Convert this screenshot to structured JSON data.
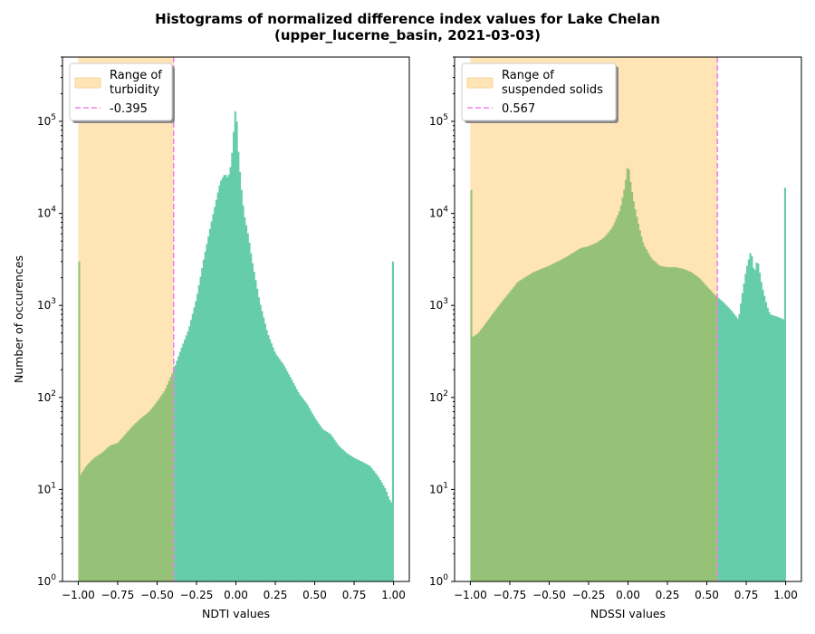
{
  "figure": {
    "title_line1": "Histograms of normalized difference index values for Lake Chelan",
    "title_line2": "(upper_lucerne_basin, 2021-03-03)"
  },
  "colors": {
    "histogram": "#66cdaa",
    "range_fill": "#ffe4b5",
    "threshold_line": "#ee82ee",
    "overlap": "#96c278"
  },
  "chart_data": [
    {
      "type": "bar",
      "name": "ndti-histogram",
      "xlabel": "NDTI values",
      "ylabel": "Number of occurences",
      "xlim": [
        -1.1,
        1.1
      ],
      "ylim": [
        1,
        500000
      ],
      "yscale": "log",
      "xticks": [
        "−1.00",
        "−0.75",
        "−0.50",
        "−0.25",
        "0.00",
        "0.25",
        "0.50",
        "0.75",
        "1.00"
      ],
      "xtick_values": [
        -1.0,
        -0.75,
        -0.5,
        -0.25,
        0.0,
        0.25,
        0.5,
        0.75,
        1.0
      ],
      "yticks": [
        1,
        10,
        100,
        1000,
        10000,
        100000
      ],
      "range": [
        -1.0,
        -0.395
      ],
      "threshold": -0.395,
      "legend": {
        "range_label": [
          "Range of",
          "turbidity"
        ],
        "threshold_label": "-0.395",
        "placement": "upper-left"
      },
      "x": [
        -1.0,
        -0.99,
        -0.95,
        -0.9,
        -0.85,
        -0.8,
        -0.75,
        -0.7,
        -0.65,
        -0.6,
        -0.55,
        -0.5,
        -0.45,
        -0.4,
        -0.35,
        -0.3,
        -0.25,
        -0.2,
        -0.15,
        -0.1,
        -0.07,
        -0.05,
        -0.03,
        -0.01,
        0.0,
        0.01,
        0.03,
        0.05,
        0.08,
        0.1,
        0.15,
        0.2,
        0.25,
        0.3,
        0.35,
        0.4,
        0.45,
        0.5,
        0.55,
        0.6,
        0.65,
        0.7,
        0.75,
        0.8,
        0.85,
        0.9,
        0.95,
        0.97,
        0.99,
        1.0
      ],
      "values": [
        3000,
        14,
        18,
        22,
        25,
        30,
        32,
        40,
        50,
        60,
        70,
        90,
        120,
        190,
        330,
        550,
        1200,
        3500,
        9000,
        22000,
        27000,
        24000,
        35000,
        100000,
        165000,
        60000,
        22000,
        10000,
        5500,
        3200,
        1100,
        500,
        300,
        230,
        160,
        110,
        85,
        60,
        45,
        40,
        30,
        25,
        22,
        20,
        18,
        14,
        10,
        8,
        7,
        3000
      ]
    },
    {
      "type": "bar",
      "name": "ndssi-histogram",
      "xlabel": "NDSSI values",
      "ylabel": "",
      "xlim": [
        -1.1,
        1.1
      ],
      "ylim": [
        1,
        500000
      ],
      "yscale": "log",
      "xticks": [
        "−1.00",
        "−0.75",
        "−0.50",
        "−0.25",
        "0.00",
        "0.25",
        "0.50",
        "0.75",
        "1.00"
      ],
      "xtick_values": [
        -1.0,
        -0.75,
        -0.5,
        -0.25,
        0.0,
        0.25,
        0.5,
        0.75,
        1.0
      ],
      "yticks": [
        1,
        10,
        100,
        1000,
        10000,
        100000
      ],
      "range": [
        -1.0,
        0.567
      ],
      "threshold": 0.567,
      "legend": {
        "range_label": [
          "Range of",
          "suspended solids"
        ],
        "threshold_label": "0.567",
        "placement": "upper-left"
      },
      "x": [
        -1.0,
        -0.99,
        -0.95,
        -0.9,
        -0.85,
        -0.8,
        -0.75,
        -0.7,
        -0.6,
        -0.5,
        -0.4,
        -0.3,
        -0.25,
        -0.2,
        -0.15,
        -0.1,
        -0.05,
        -0.02,
        0.0,
        0.01,
        0.03,
        0.05,
        0.08,
        0.1,
        0.15,
        0.2,
        0.25,
        0.3,
        0.35,
        0.4,
        0.45,
        0.5,
        0.55,
        0.6,
        0.65,
        0.7,
        0.72,
        0.75,
        0.78,
        0.8,
        0.82,
        0.85,
        0.88,
        0.9,
        0.95,
        0.99,
        1.0
      ],
      "values": [
        18000,
        450,
        500,
        650,
        850,
        1100,
        1400,
        1800,
        2300,
        2700,
        3300,
        4200,
        4400,
        4800,
        5500,
        7000,
        11000,
        20000,
        36000,
        25000,
        15000,
        10000,
        6000,
        4500,
        3200,
        2700,
        2600,
        2600,
        2500,
        2300,
        2000,
        1600,
        1300,
        1100,
        900,
        700,
        1200,
        2500,
        4000,
        2200,
        3200,
        1600,
        1000,
        800,
        750,
        700,
        19000
      ]
    }
  ]
}
